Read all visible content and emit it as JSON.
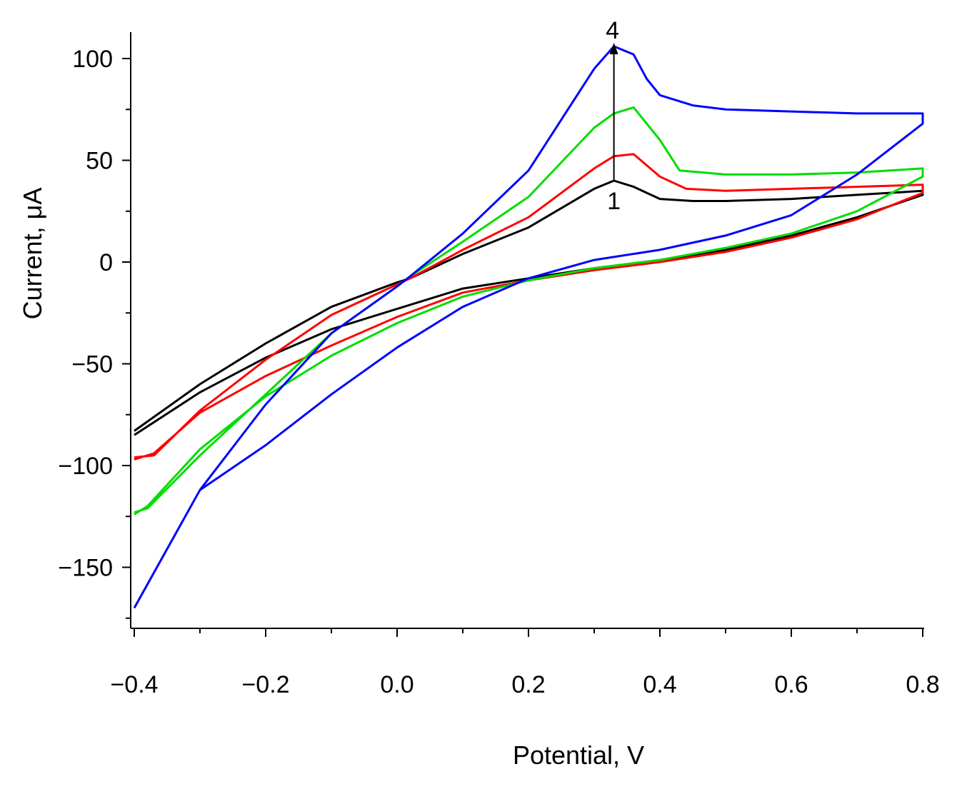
{
  "chart_data": {
    "type": "line",
    "title": "",
    "xlabel": "Potential, V",
    "ylabel": "Current,  μA",
    "xlim": [
      -0.4,
      0.8
    ],
    "ylim": [
      -170,
      105
    ],
    "x_ticks": [
      "−0.4",
      "−0.2",
      "0.0",
      "0.2",
      "0.4",
      "0.6",
      "0.8"
    ],
    "x_tick_values": [
      -0.4,
      -0.2,
      0.0,
      0.2,
      0.4,
      0.6,
      0.8
    ],
    "y_ticks": [
      "100",
      "50",
      "0",
      "−50",
      "−100",
      "−150"
    ],
    "y_tick_values": [
      100,
      50,
      0,
      -50,
      -100,
      -150
    ],
    "grid": false,
    "legend": "none",
    "annotations": {
      "arrow_from_label": "1",
      "arrow_to_label": "4",
      "arrow_x": 0.33,
      "arrow_y_start": 40,
      "arrow_y_end": 107
    },
    "series": [
      {
        "color": "#000000",
        "forward": [
          [
            -0.4,
            -83
          ],
          [
            -0.3,
            -60
          ],
          [
            -0.2,
            -40
          ],
          [
            -0.1,
            -22
          ],
          [
            0.0,
            -10
          ],
          [
            0.02,
            -8
          ],
          [
            0.1,
            4
          ],
          [
            0.2,
            17
          ],
          [
            0.3,
            36
          ],
          [
            0.33,
            40
          ],
          [
            0.36,
            37
          ],
          [
            0.4,
            31
          ],
          [
            0.45,
            30
          ],
          [
            0.5,
            30
          ],
          [
            0.6,
            31
          ],
          [
            0.7,
            33
          ],
          [
            0.8,
            35
          ]
        ],
        "reverse": [
          [
            0.8,
            33
          ],
          [
            0.7,
            22
          ],
          [
            0.6,
            13
          ],
          [
            0.5,
            6
          ],
          [
            0.4,
            1
          ],
          [
            0.3,
            -3
          ],
          [
            0.2,
            -8
          ],
          [
            0.1,
            -13
          ],
          [
            0.0,
            -23
          ],
          [
            -0.1,
            -33
          ],
          [
            -0.2,
            -47
          ],
          [
            -0.3,
            -64
          ],
          [
            -0.4,
            -85
          ]
        ]
      },
      {
        "color": "#ff0000",
        "forward": [
          [
            -0.4,
            -96
          ],
          [
            -0.37,
            -95
          ],
          [
            -0.3,
            -73
          ],
          [
            -0.2,
            -48
          ],
          [
            -0.1,
            -26
          ],
          [
            0.0,
            -11
          ],
          [
            0.02,
            -8
          ],
          [
            0.1,
            6
          ],
          [
            0.2,
            22
          ],
          [
            0.3,
            46
          ],
          [
            0.33,
            52
          ],
          [
            0.36,
            53
          ],
          [
            0.4,
            42
          ],
          [
            0.44,
            36
          ],
          [
            0.5,
            35
          ],
          [
            0.6,
            36
          ],
          [
            0.7,
            37
          ],
          [
            0.8,
            38
          ]
        ],
        "reverse": [
          [
            0.8,
            34
          ],
          [
            0.7,
            21
          ],
          [
            0.6,
            12
          ],
          [
            0.5,
            5
          ],
          [
            0.4,
            0
          ],
          [
            0.3,
            -4
          ],
          [
            0.2,
            -9
          ],
          [
            0.1,
            -15
          ],
          [
            0.0,
            -27
          ],
          [
            -0.1,
            -41
          ],
          [
            -0.2,
            -56
          ],
          [
            -0.3,
            -74
          ],
          [
            -0.37,
            -94
          ],
          [
            -0.4,
            -97
          ]
        ]
      },
      {
        "color": "#00dd00",
        "forward": [
          [
            -0.4,
            -123
          ],
          [
            -0.38,
            -121
          ],
          [
            -0.3,
            -95
          ],
          [
            -0.2,
            -65
          ],
          [
            -0.1,
            -35
          ],
          [
            0.0,
            -12
          ],
          [
            0.02,
            -7
          ],
          [
            0.1,
            10
          ],
          [
            0.2,
            32
          ],
          [
            0.3,
            66
          ],
          [
            0.33,
            73
          ],
          [
            0.36,
            76
          ],
          [
            0.4,
            60
          ],
          [
            0.43,
            45
          ],
          [
            0.5,
            43
          ],
          [
            0.6,
            43
          ],
          [
            0.7,
            44
          ],
          [
            0.8,
            46
          ]
        ],
        "reverse": [
          [
            0.8,
            42
          ],
          [
            0.7,
            25
          ],
          [
            0.6,
            14
          ],
          [
            0.5,
            7
          ],
          [
            0.4,
            1
          ],
          [
            0.3,
            -3
          ],
          [
            0.2,
            -9
          ],
          [
            0.1,
            -17
          ],
          [
            0.0,
            -30
          ],
          [
            -0.1,
            -46
          ],
          [
            -0.2,
            -66
          ],
          [
            -0.3,
            -92
          ],
          [
            -0.38,
            -120
          ],
          [
            -0.4,
            -124
          ]
        ]
      },
      {
        "color": "#0000ff",
        "forward": [
          [
            -0.4,
            -170
          ],
          [
            -0.3,
            -112
          ],
          [
            -0.2,
            -70
          ],
          [
            -0.1,
            -35
          ],
          [
            0.0,
            -12
          ],
          [
            0.02,
            -7
          ],
          [
            0.1,
            14
          ],
          [
            0.2,
            45
          ],
          [
            0.3,
            95
          ],
          [
            0.33,
            106
          ],
          [
            0.36,
            102
          ],
          [
            0.38,
            90
          ],
          [
            0.4,
            82
          ],
          [
            0.45,
            77
          ],
          [
            0.5,
            75
          ],
          [
            0.6,
            74
          ],
          [
            0.7,
            73
          ],
          [
            0.8,
            73
          ]
        ],
        "reverse": [
          [
            0.8,
            68
          ],
          [
            0.7,
            43
          ],
          [
            0.6,
            23
          ],
          [
            0.5,
            13
          ],
          [
            0.4,
            6
          ],
          [
            0.3,
            1
          ],
          [
            0.2,
            -8
          ],
          [
            0.1,
            -22
          ],
          [
            0.0,
            -42
          ],
          [
            -0.1,
            -65
          ],
          [
            -0.2,
            -90
          ],
          [
            -0.3,
            -112
          ],
          [
            -0.4,
            -170
          ]
        ]
      }
    ]
  }
}
